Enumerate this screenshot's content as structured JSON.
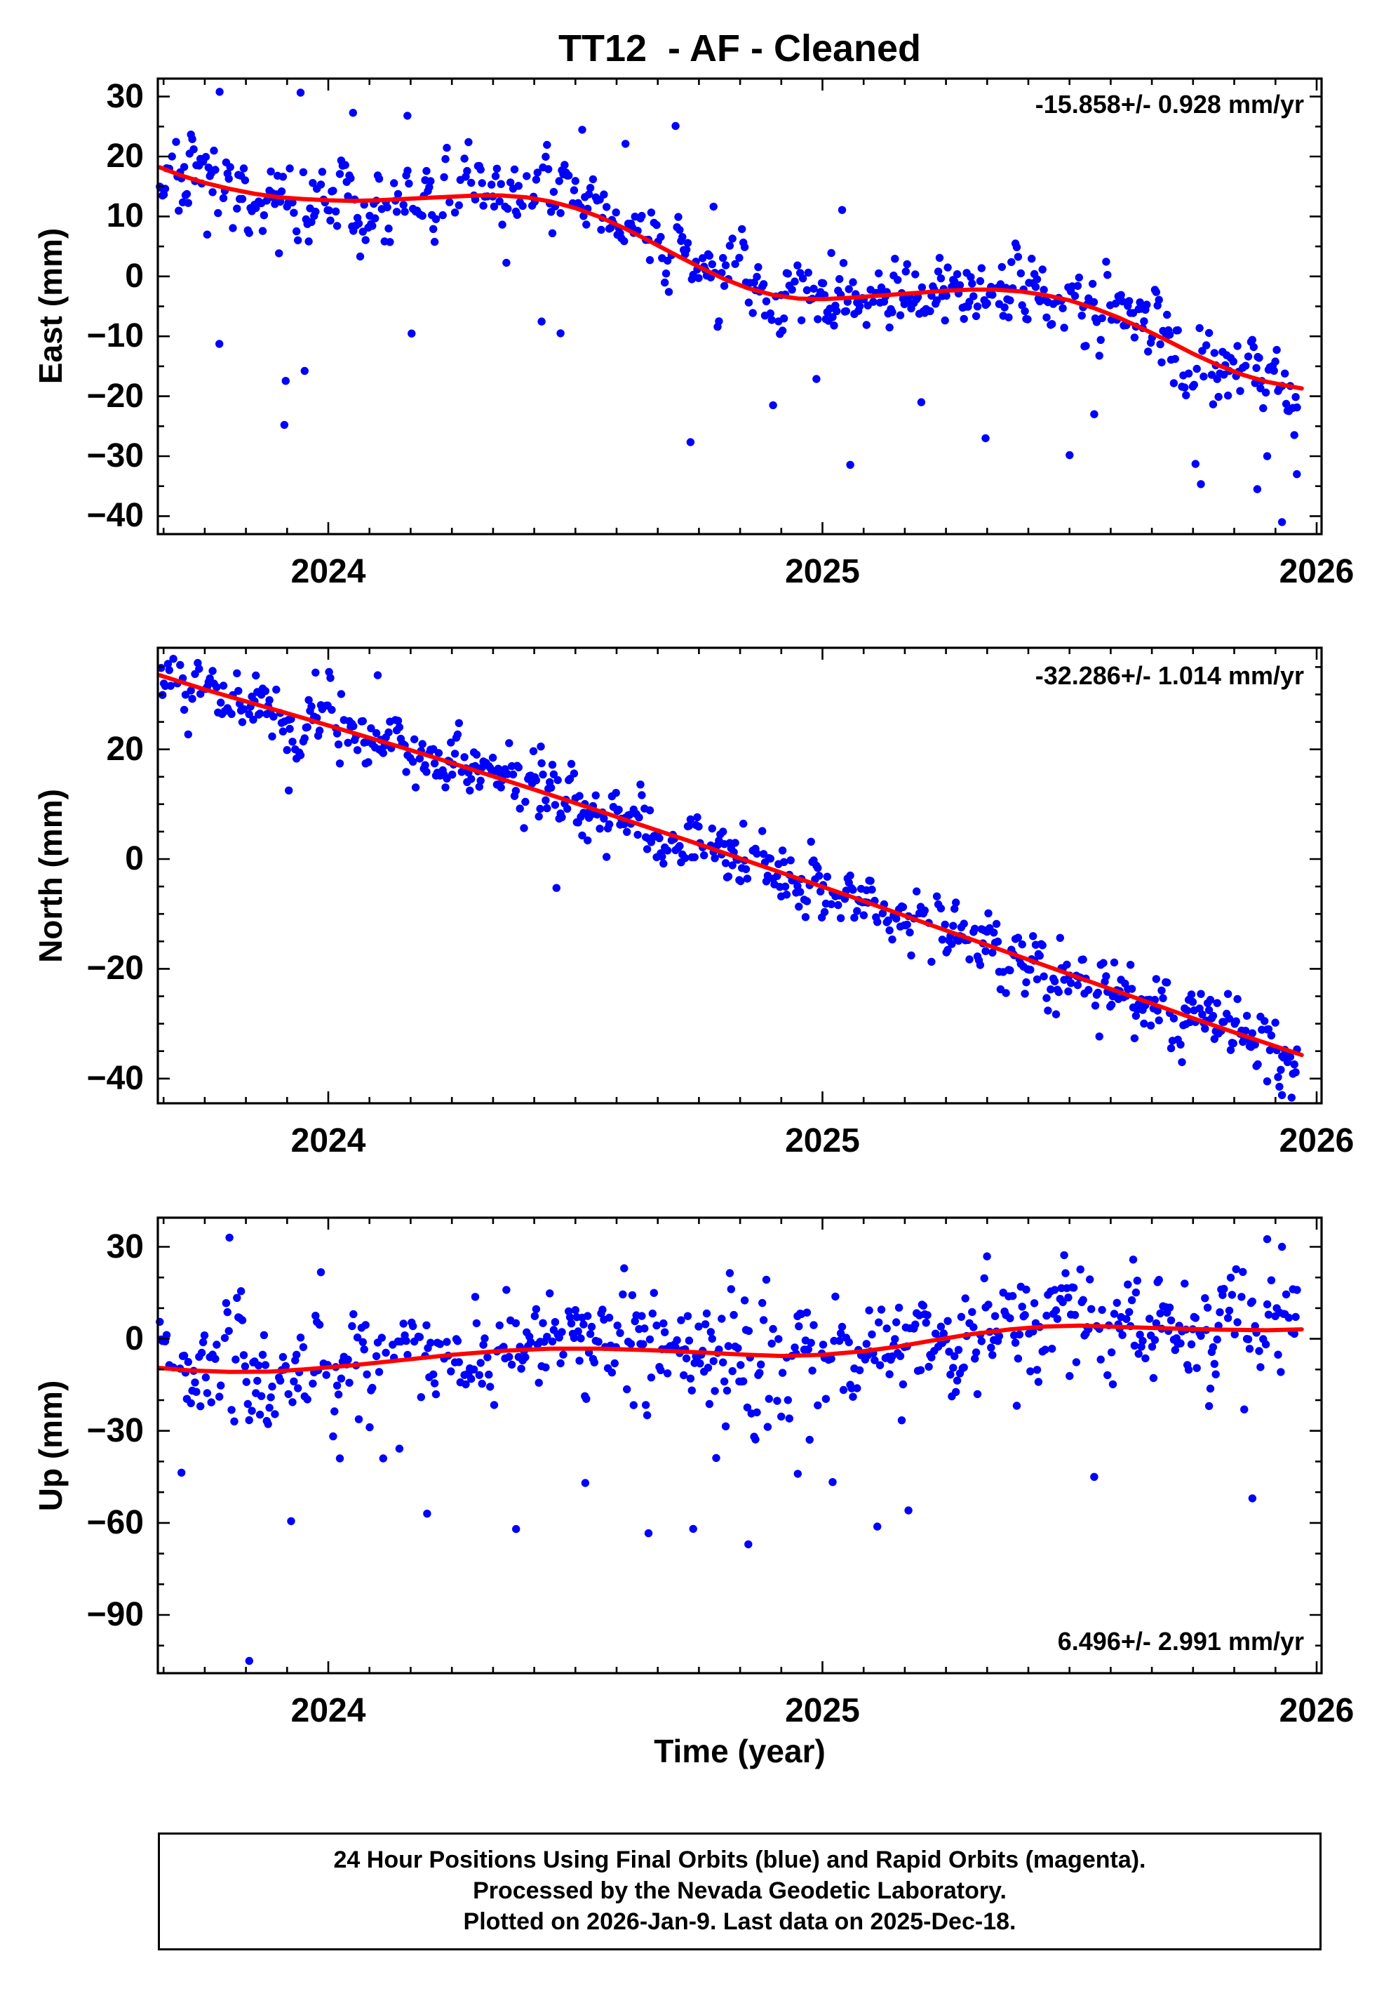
{
  "title": "TT12  - AF - Cleaned",
  "xlabel": "Time (year)",
  "footer": {
    "lines": [
      "24 Hour Positions Using Final Orbits (blue) and Rapid Orbits (magenta).",
      "Processed by the Nevada Geodetic Laboratory.",
      "Plotted on 2026-Jan-9. Last data on 2025-Dec-18."
    ]
  },
  "colors": {
    "points": "#0000ff",
    "trend": "#ff0000",
    "frame": "#000000"
  },
  "chart_data": [
    {
      "type": "scatter",
      "name": "east",
      "ylabel": "East (mm)",
      "annotation": "-15.858+/- 0.928 mm/yr",
      "annotation_corner": "top-right",
      "rate_mm_per_yr": -15.858,
      "rate_sigma_mm_per_yr": 0.928,
      "xlim": [
        2023.655,
        2026.01
      ],
      "ylim": [
        -43,
        33
      ],
      "xticks": [
        2024,
        2025,
        2026
      ],
      "yticks": [
        30,
        20,
        10,
        0,
        -10,
        -20,
        -30,
        -40
      ],
      "x_minor": 0.0833333,
      "y_minor": 5,
      "trend": [
        [
          2023.659,
          18.2
        ],
        [
          2023.7,
          16.9
        ],
        [
          2023.75,
          15.6
        ],
        [
          2023.8,
          14.6
        ],
        [
          2023.85,
          13.8
        ],
        [
          2023.9,
          13.2
        ],
        [
          2023.95,
          12.9
        ],
        [
          2024.0,
          12.7
        ],
        [
          2024.05,
          12.6
        ],
        [
          2024.1,
          12.7
        ],
        [
          2024.15,
          12.9
        ],
        [
          2024.2,
          13.1
        ],
        [
          2024.25,
          13.3
        ],
        [
          2024.3,
          13.5
        ],
        [
          2024.35,
          13.5
        ],
        [
          2024.4,
          13.2
        ],
        [
          2024.45,
          12.5
        ],
        [
          2024.5,
          11.4
        ],
        [
          2024.55,
          9.9
        ],
        [
          2024.6,
          8.0
        ],
        [
          2024.65,
          5.9
        ],
        [
          2024.7,
          3.7
        ],
        [
          2024.75,
          1.6
        ],
        [
          2024.8,
          -0.4
        ],
        [
          2024.85,
          -2.0
        ],
        [
          2024.9,
          -3.1
        ],
        [
          2024.95,
          -3.7
        ],
        [
          2025.0,
          -3.8
        ],
        [
          2025.05,
          -3.6
        ],
        [
          2025.1,
          -3.3
        ],
        [
          2025.15,
          -3.0
        ],
        [
          2025.2,
          -2.7
        ],
        [
          2025.25,
          -2.4
        ],
        [
          2025.3,
          -2.2
        ],
        [
          2025.35,
          -2.2
        ],
        [
          2025.4,
          -2.5
        ],
        [
          2025.45,
          -3.1
        ],
        [
          2025.5,
          -4.0
        ],
        [
          2025.55,
          -5.3
        ],
        [
          2025.6,
          -6.9
        ],
        [
          2025.65,
          -8.8
        ],
        [
          2025.7,
          -10.8
        ],
        [
          2025.75,
          -12.9
        ],
        [
          2025.8,
          -14.8
        ],
        [
          2025.85,
          -16.4
        ],
        [
          2025.9,
          -17.6
        ],
        [
          2025.95,
          -18.4
        ],
        [
          2025.97,
          -18.7
        ]
      ],
      "scatter": {
        "seed": 11,
        "start": 2023.659,
        "end": 2025.963,
        "step": 0.0027397,
        "keep_prob": 0.78,
        "std": 3.4,
        "ar": 0.55,
        "outlier_prob": 0.05,
        "outlier_scale": 9,
        "outlier_neg_frac": 0.85
      },
      "extra_points": [
        [
          2023.78,
          30.8
        ],
        [
          2024.05,
          27.3
        ],
        [
          2024.16,
          26.8
        ],
        [
          2024.47,
          -9.5
        ],
        [
          2024.9,
          -21.5
        ],
        [
          2025.2,
          -21
        ],
        [
          2025.33,
          -27
        ],
        [
          2025.55,
          -23
        ],
        [
          2025.88,
          -35.5
        ],
        [
          2025.9,
          -30
        ],
        [
          2025.93,
          -41
        ],
        [
          2025.96,
          -33
        ]
      ]
    },
    {
      "type": "scatter",
      "name": "north",
      "ylabel": "North (mm)",
      "annotation": "-32.286+/- 1.014 mm/yr",
      "annotation_corner": "top-right",
      "rate_mm_per_yr": -32.286,
      "rate_sigma_mm_per_yr": 1.014,
      "xlim": [
        2023.655,
        2026.01
      ],
      "ylim": [
        -44.5,
        38.5
      ],
      "xticks": [
        2024,
        2025,
        2026
      ],
      "yticks": [
        20,
        0,
        -20,
        -40
      ],
      "x_minor": 0.0833333,
      "y_minor": 5,
      "trend": [
        [
          2023.659,
          33.5
        ],
        [
          2023.75,
          30.9
        ],
        [
          2023.85,
          28.3
        ],
        [
          2023.95,
          25.7
        ],
        [
          2024.05,
          23.0
        ],
        [
          2024.15,
          20.3
        ],
        [
          2024.25,
          17.5
        ],
        [
          2024.35,
          14.6
        ],
        [
          2024.45,
          11.7
        ],
        [
          2024.55,
          8.7
        ],
        [
          2024.65,
          5.7
        ],
        [
          2024.75,
          2.7
        ],
        [
          2024.85,
          -0.4
        ],
        [
          2024.95,
          -3.5
        ],
        [
          2025.05,
          -6.6
        ],
        [
          2025.15,
          -9.8
        ],
        [
          2025.25,
          -13.0
        ],
        [
          2025.35,
          -16.2
        ],
        [
          2025.45,
          -19.4
        ],
        [
          2025.55,
          -22.6
        ],
        [
          2025.65,
          -25.8
        ],
        [
          2025.75,
          -29.0
        ],
        [
          2025.85,
          -32.1
        ],
        [
          2025.95,
          -35.1
        ],
        [
          2025.97,
          -35.7
        ]
      ],
      "scatter": {
        "seed": 7,
        "start": 2023.659,
        "end": 2025.963,
        "step": 0.0027397,
        "keep_prob": 0.78,
        "std": 3.0,
        "ar": 0.5,
        "outlier_prob": 0.02,
        "outlier_scale": 6,
        "outlier_neg_frac": 0.6
      },
      "extra_points": [
        [
          2023.92,
          12.5
        ],
        [
          2024.1,
          33.5
        ],
        [
          2024.43,
          20.5
        ],
        [
          2025.9,
          -40.5
        ],
        [
          2025.93,
          -43
        ]
      ]
    },
    {
      "type": "scatter",
      "name": "up",
      "ylabel": "Up (mm)",
      "annotation": "6.496+/- 2.991 mm/yr",
      "annotation_corner": "bottom-right",
      "rate_mm_per_yr": 6.496,
      "rate_sigma_mm_per_yr": 2.991,
      "xlim": [
        2023.655,
        2026.01
      ],
      "ylim": [
        -109,
        39.5
      ],
      "xticks": [
        2024,
        2025,
        2026
      ],
      "yticks": [
        30,
        0,
        -30,
        -60,
        -90
      ],
      "x_minor": 0.0833333,
      "y_minor": 10,
      "trend": [
        [
          2023.659,
          -9.5
        ],
        [
          2023.72,
          -10.3
        ],
        [
          2023.8,
          -10.8
        ],
        [
          2023.88,
          -10.7
        ],
        [
          2023.95,
          -10.0
        ],
        [
          2024.05,
          -8.6
        ],
        [
          2024.15,
          -6.9
        ],
        [
          2024.25,
          -5.2
        ],
        [
          2024.35,
          -3.9
        ],
        [
          2024.45,
          -3.2
        ],
        [
          2024.55,
          -3.2
        ],
        [
          2024.65,
          -3.7
        ],
        [
          2024.75,
          -4.4
        ],
        [
          2024.85,
          -5.2
        ],
        [
          2024.92,
          -5.6
        ],
        [
          2025.0,
          -5.2
        ],
        [
          2025.08,
          -4.1
        ],
        [
          2025.15,
          -2.6
        ],
        [
          2025.22,
          -0.6
        ],
        [
          2025.3,
          1.5
        ],
        [
          2025.38,
          3.1
        ],
        [
          2025.45,
          4.0
        ],
        [
          2025.52,
          4.3
        ],
        [
          2025.6,
          3.9
        ],
        [
          2025.7,
          3.4
        ],
        [
          2025.8,
          3.0
        ],
        [
          2025.9,
          2.8
        ],
        [
          2025.97,
          3.1
        ]
      ],
      "scatter": {
        "seed": 23,
        "start": 2023.659,
        "end": 2025.963,
        "step": 0.0027397,
        "keep_prob": 0.78,
        "std": 8.5,
        "ar": 0.45,
        "outlier_prob": 0.06,
        "outlier_scale": 15,
        "outlier_neg_frac": 0.8
      },
      "extra_points": [
        [
          2023.8,
          33
        ],
        [
          2023.84,
          -105
        ],
        [
          2024.2,
          -57
        ],
        [
          2024.38,
          -62
        ],
        [
          2024.52,
          -47
        ],
        [
          2024.85,
          -67
        ],
        [
          2024.95,
          -44
        ],
        [
          2025.55,
          -45
        ],
        [
          2025.87,
          -52
        ],
        [
          2025.9,
          32.5
        ],
        [
          2025.93,
          30
        ]
      ]
    }
  ]
}
